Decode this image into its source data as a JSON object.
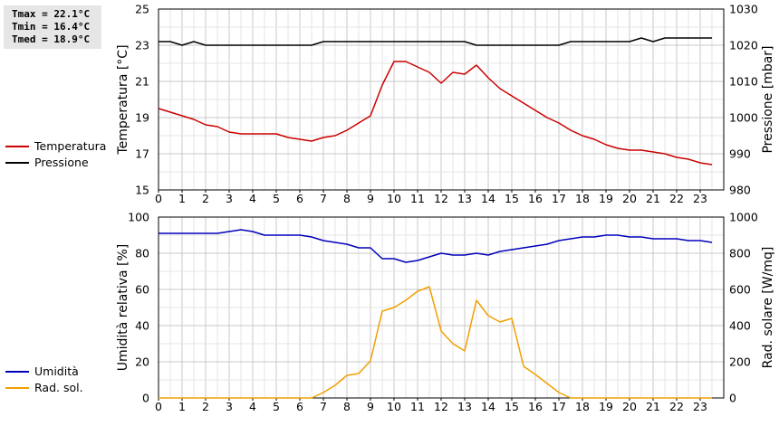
{
  "stats": {
    "tmax": "Tmax = 22.1°C",
    "tmin": "Tmin = 16.4°C",
    "tmed": "Tmed = 18.9°C"
  },
  "legend_top": [
    {
      "label": "Temperatura",
      "color": "#cc0000"
    },
    {
      "label": "Pressione",
      "color": "#000000"
    }
  ],
  "legend_bottom": [
    {
      "label": "Umidità",
      "color": "#0000bb"
    },
    {
      "label": "Rad. sol.",
      "color": "#f0a000"
    }
  ],
  "chart_data": [
    {
      "type": "line",
      "grid": true,
      "xlim": [
        0,
        24
      ],
      "x_ticks": [
        0,
        1,
        2,
        3,
        4,
        5,
        6,
        7,
        8,
        9,
        10,
        11,
        12,
        13,
        14,
        15,
        16,
        17,
        18,
        19,
        20,
        21,
        22,
        23
      ],
      "y_left": {
        "label": "Temperatura [°C]",
        "lim": [
          15,
          25
        ],
        "ticks": [
          15,
          17,
          19,
          21,
          23,
          25
        ]
      },
      "y_right": {
        "label": "Pressione [mbar]",
        "lim": [
          980,
          1030
        ],
        "ticks": [
          980,
          990,
          1000,
          1010,
          1020,
          1030
        ]
      },
      "series": [
        {
          "name": "Temperatura",
          "axis": "left",
          "color": "#cc0000",
          "x": [
            0,
            0.5,
            1,
            1.5,
            2,
            2.5,
            3,
            3.5,
            4,
            4.5,
            5,
            5.5,
            6,
            6.5,
            7,
            7.5,
            8,
            8.5,
            9,
            9.5,
            10,
            10.5,
            11,
            11.5,
            12,
            12.5,
            13,
            13.5,
            14,
            14.5,
            15,
            15.5,
            16,
            16.5,
            17,
            17.5,
            18,
            18.5,
            19,
            19.5,
            20,
            20.5,
            21,
            21.5,
            22,
            22.5,
            23,
            23.5
          ],
          "y": [
            19.5,
            19.3,
            19.1,
            18.9,
            18.6,
            18.5,
            18.2,
            18.1,
            18.1,
            18.1,
            18.1,
            17.9,
            17.8,
            17.7,
            17.9,
            18.0,
            18.3,
            18.7,
            19.1,
            20.8,
            22.1,
            22.1,
            21.8,
            21.5,
            20.9,
            21.5,
            21.4,
            21.9,
            21.2,
            20.6,
            20.2,
            19.8,
            19.4,
            19.0,
            18.7,
            18.3,
            18.0,
            17.8,
            17.5,
            17.3,
            17.2,
            17.2,
            17.1,
            17.0,
            16.8,
            16.7,
            16.5,
            16.4
          ]
        },
        {
          "name": "Pressione",
          "axis": "right",
          "color": "#000000",
          "x": [
            0,
            0.5,
            1,
            1.5,
            2,
            2.5,
            3,
            3.5,
            4,
            4.5,
            5,
            5.5,
            6,
            6.5,
            7,
            7.5,
            8,
            8.5,
            9,
            9.5,
            10,
            10.5,
            11,
            11.5,
            12,
            12.5,
            13,
            13.5,
            14,
            14.5,
            15,
            15.5,
            16,
            16.5,
            17,
            17.5,
            18,
            18.5,
            19,
            19.5,
            20,
            20.5,
            21,
            21.5,
            22,
            22.5,
            23,
            23.5
          ],
          "y": [
            1021,
            1021,
            1020,
            1021,
            1020,
            1020,
            1020,
            1020,
            1020,
            1020,
            1020,
            1020,
            1020,
            1020,
            1021,
            1021,
            1021,
            1021,
            1021,
            1021,
            1021,
            1021,
            1021,
            1021,
            1021,
            1021,
            1021,
            1020,
            1020,
            1020,
            1020,
            1020,
            1020,
            1020,
            1020,
            1021,
            1021,
            1021,
            1021,
            1021,
            1021,
            1022,
            1021,
            1022,
            1022,
            1022,
            1022,
            1022
          ]
        }
      ]
    },
    {
      "type": "line",
      "grid": true,
      "xlim": [
        0,
        24
      ],
      "x_ticks": [
        0,
        1,
        2,
        3,
        4,
        5,
        6,
        7,
        8,
        9,
        10,
        11,
        12,
        13,
        14,
        15,
        16,
        17,
        18,
        19,
        20,
        21,
        22,
        23
      ],
      "y_left": {
        "label": "Umidità relativa [%]",
        "lim": [
          0,
          100
        ],
        "ticks": [
          0,
          20,
          40,
          60,
          80,
          100
        ]
      },
      "y_right": {
        "label": "Rad. solare [W/mq]",
        "lim": [
          0,
          1000
        ],
        "ticks": [
          0,
          200,
          400,
          600,
          800,
          1000
        ]
      },
      "series": [
        {
          "name": "Umidità",
          "axis": "left",
          "color": "#0000bb",
          "x": [
            0,
            0.5,
            1,
            1.5,
            2,
            2.5,
            3,
            3.5,
            4,
            4.5,
            5,
            5.5,
            6,
            6.5,
            7,
            7.5,
            8,
            8.5,
            9,
            9.5,
            10,
            10.5,
            11,
            11.5,
            12,
            12.5,
            13,
            13.5,
            14,
            14.5,
            15,
            15.5,
            16,
            16.5,
            17,
            17.5,
            18,
            18.5,
            19,
            19.5,
            20,
            20.5,
            21,
            21.5,
            22,
            22.5,
            23,
            23.5
          ],
          "y": [
            91,
            91,
            91,
            91,
            91,
            91,
            92,
            93,
            92,
            90,
            90,
            90,
            90,
            89,
            87,
            86,
            85,
            83,
            83,
            77,
            77,
            75,
            76,
            78,
            80,
            79,
            79,
            80,
            79,
            81,
            82,
            83,
            84,
            85,
            87,
            88,
            89,
            89,
            90,
            90,
            89,
            89,
            88,
            88,
            88,
            87,
            87,
            86
          ]
        },
        {
          "name": "Rad. sol.",
          "axis": "right",
          "color": "#f0a000",
          "x": [
            0,
            0.5,
            1,
            1.5,
            2,
            2.5,
            3,
            3.5,
            4,
            4.5,
            5,
            5.5,
            6,
            6.5,
            7,
            7.5,
            8,
            8.5,
            9,
            9.5,
            10,
            10.5,
            11,
            11.5,
            12,
            12.5,
            13,
            13.5,
            14,
            14.5,
            15,
            15.5,
            16,
            16.5,
            17,
            17.5,
            18,
            18.5,
            19,
            19.5,
            20,
            20.5,
            21,
            21.5,
            22,
            22.5,
            23,
            23.5
          ],
          "y": [
            0,
            0,
            0,
            0,
            0,
            0,
            0,
            0,
            0,
            0,
            0,
            0,
            0,
            0,
            30,
            70,
            125,
            135,
            205,
            480,
            500,
            540,
            590,
            615,
            370,
            300,
            260,
            540,
            455,
            420,
            440,
            175,
            130,
            80,
            30,
            0,
            0,
            0,
            0,
            0,
            0,
            0,
            0,
            0,
            0,
            0,
            0,
            0
          ]
        }
      ]
    }
  ]
}
